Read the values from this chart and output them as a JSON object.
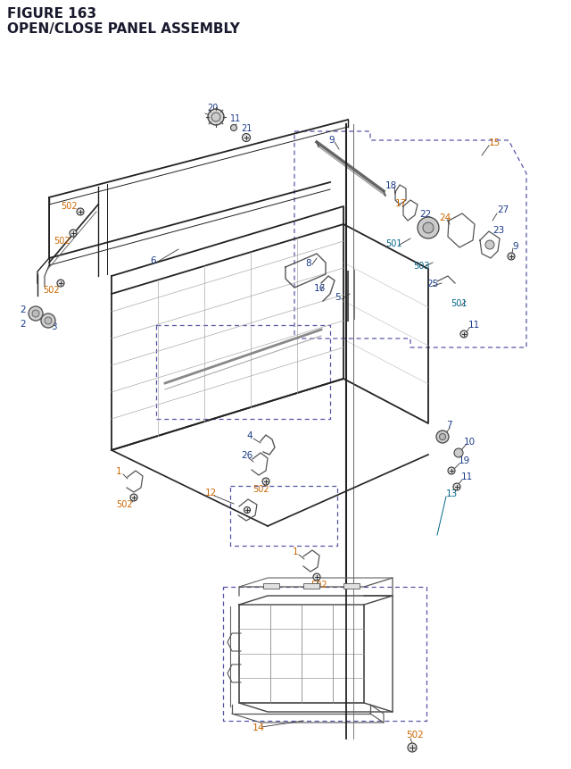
{
  "title_line1": "FIGURE 163",
  "title_line2": "OPEN/CLOSE PANEL ASSEMBLY",
  "title_color": "#1a1a2e",
  "title_fontsize": 11,
  "bg_color": "#ffffff",
  "orange": "#cc6600",
  "blue": "#1a3a8a",
  "teal": "#006688",
  "dark": "#222222",
  "gray": "#555555",
  "lgray": "#999999",
  "dashed_color": "#4444aa",
  "fig_width": 6.4,
  "fig_height": 8.62,
  "dpi": 100
}
